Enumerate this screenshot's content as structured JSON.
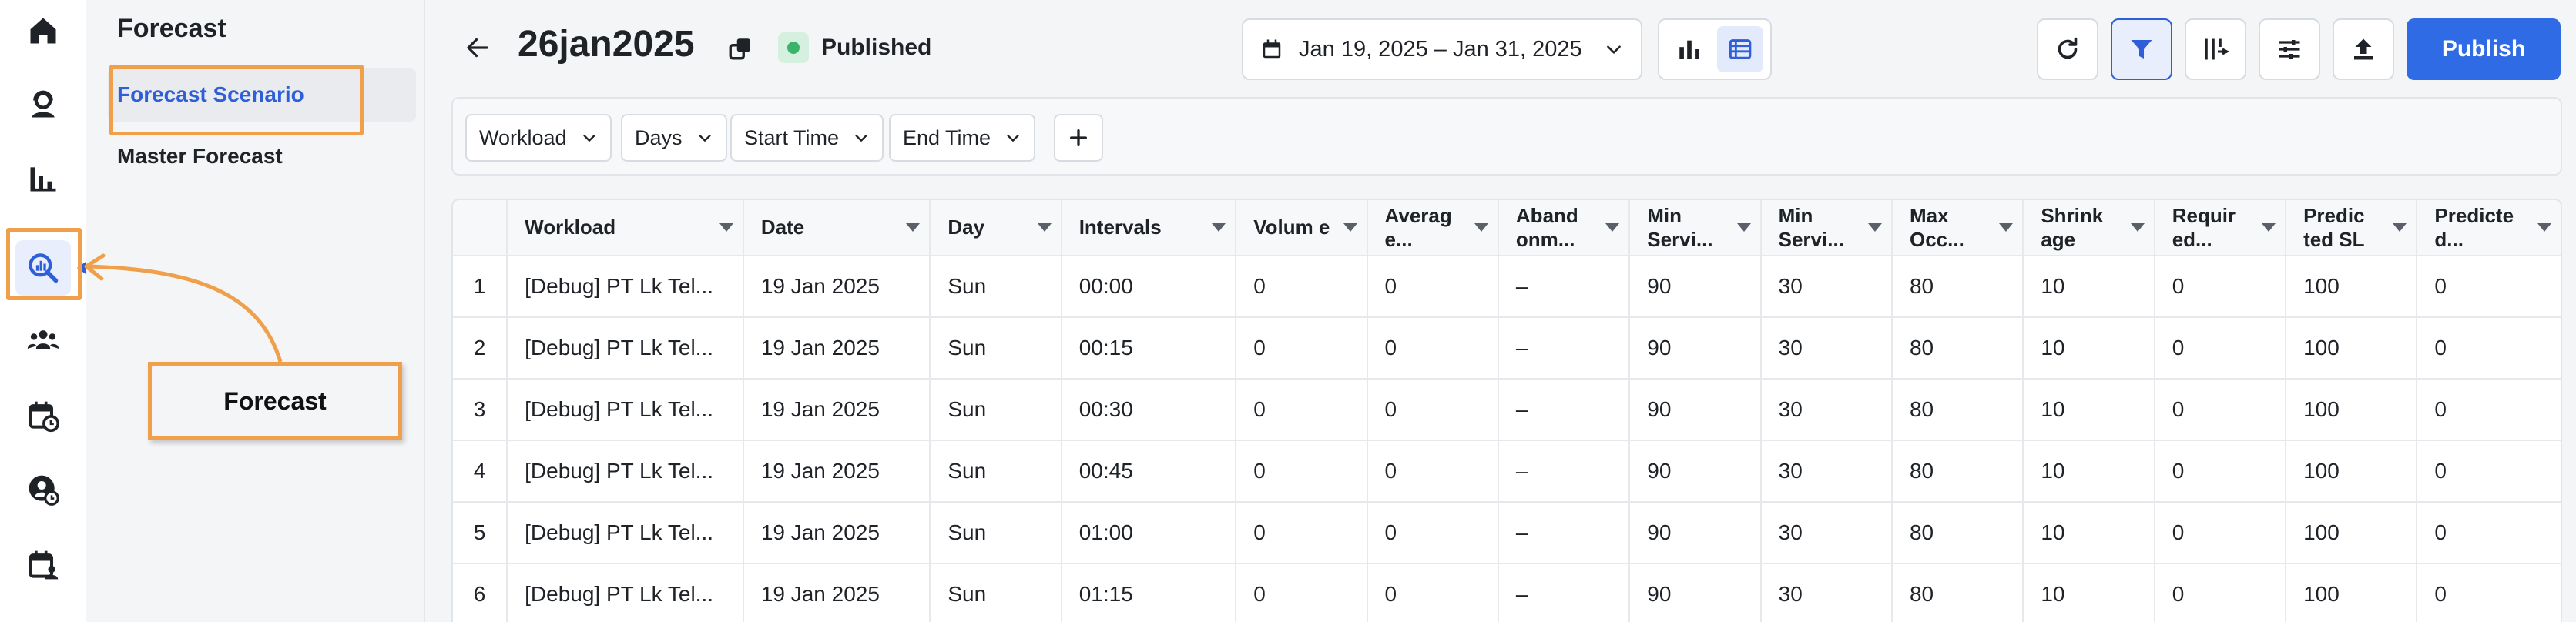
{
  "rail": {
    "items": [
      {
        "name": "home-icon"
      },
      {
        "name": "agent-icon"
      },
      {
        "name": "analytics-icon"
      },
      {
        "name": "forecast-icon",
        "active": true
      },
      {
        "name": "team-icon"
      },
      {
        "name": "schedule-icon"
      },
      {
        "name": "user-clock-icon"
      },
      {
        "name": "calendar-user-icon"
      }
    ]
  },
  "submenu": {
    "title": "Forecast",
    "items": [
      {
        "label": "Forecast Scenario",
        "active": true
      },
      {
        "label": "Master Forecast"
      }
    ]
  },
  "annotation": {
    "label": "Forecast",
    "color": "#f0a04a"
  },
  "header": {
    "title": "26jan2025",
    "status": "Published",
    "date_range": "Jan 19, 2025 – Jan 31, 2025",
    "publish_label": "Publish"
  },
  "filters": [
    "Workload",
    "Days",
    "Start Time",
    "End Time"
  ],
  "table": {
    "columns": [
      "",
      "Workload",
      "Date",
      "Day",
      "Intervals",
      "Volum e",
      "Averag e...",
      "Aband onm...",
      "Min Servi...",
      "Min Servi...",
      "Max Occ...",
      "Shrink age",
      "Requir ed...",
      "Predic ted SL",
      "Predicte d..."
    ],
    "rows": [
      [
        "1",
        "[Debug] PT Lk Tel...",
        "19 Jan 2025",
        "Sun",
        "00:00",
        "0",
        "0",
        "–",
        "90",
        "30",
        "80",
        "10",
        "0",
        "100",
        "0"
      ],
      [
        "2",
        "[Debug] PT Lk Tel...",
        "19 Jan 2025",
        "Sun",
        "00:15",
        "0",
        "0",
        "–",
        "90",
        "30",
        "80",
        "10",
        "0",
        "100",
        "0"
      ],
      [
        "3",
        "[Debug] PT Lk Tel...",
        "19 Jan 2025",
        "Sun",
        "00:30",
        "0",
        "0",
        "–",
        "90",
        "30",
        "80",
        "10",
        "0",
        "100",
        "0"
      ],
      [
        "4",
        "[Debug] PT Lk Tel...",
        "19 Jan 2025",
        "Sun",
        "00:45",
        "0",
        "0",
        "–",
        "90",
        "30",
        "80",
        "10",
        "0",
        "100",
        "0"
      ],
      [
        "5",
        "[Debug] PT Lk Tel...",
        "19 Jan 2025",
        "Sun",
        "01:00",
        "0",
        "0",
        "–",
        "90",
        "30",
        "80",
        "10",
        "0",
        "100",
        "0"
      ],
      [
        "6",
        "[Debug] PT Lk Tel...",
        "19 Jan 2025",
        "Sun",
        "01:15",
        "0",
        "0",
        "–",
        "90",
        "30",
        "80",
        "10",
        "0",
        "100",
        "0"
      ]
    ]
  }
}
